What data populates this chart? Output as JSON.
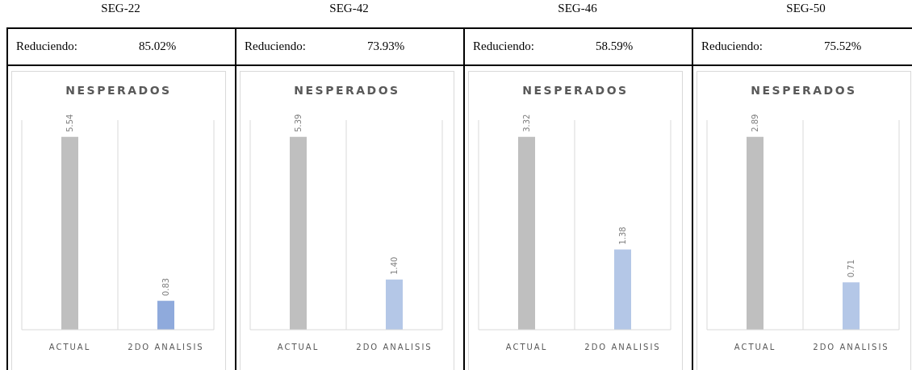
{
  "chart_data": [
    {
      "type": "bar",
      "title": "SEG-22",
      "subtitle": "NESPERADOS",
      "annotations": [
        "Reduciendo:",
        "85.02%"
      ],
      "categories": [
        "ACTUAL",
        "2DO ANALISIS"
      ],
      "values": [
        5.54,
        0.83
      ],
      "value_labels": [
        "5.54",
        "0.83"
      ],
      "colors": [
        "#bfbfbf",
        "#8faadc"
      ],
      "grid": "x",
      "tick_labels": "x"
    },
    {
      "type": "bar",
      "title": "SEG-42",
      "subtitle": "NESPERADOS",
      "annotations": [
        "Reduciendo:",
        "73.93%"
      ],
      "categories": [
        "ACTUAL",
        "2DO ANALISIS"
      ],
      "values": [
        5.39,
        1.4
      ],
      "value_labels": [
        "5.39",
        "1.40"
      ],
      "colors": [
        "#bfbfbf",
        "#b4c7e7"
      ],
      "grid": "x",
      "tick_labels": "x"
    },
    {
      "type": "bar",
      "title": "SEG-46",
      "subtitle": "NESPERADOS",
      "annotations": [
        "Reduciendo:",
        "58.59%"
      ],
      "categories": [
        "ACTUAL",
        "2DO ANALISIS"
      ],
      "values": [
        3.32,
        1.38
      ],
      "value_labels": [
        "3.32",
        "1.38"
      ],
      "colors": [
        "#bfbfbf",
        "#b4c7e7"
      ],
      "grid": "x",
      "tick_labels": "x"
    },
    {
      "type": "bar",
      "title": "SEG-50",
      "subtitle": "NESPERADOS",
      "annotations": [
        "Reduciendo:",
        "75.52%"
      ],
      "categories": [
        "ACTUAL",
        "2DO ANALISIS"
      ],
      "values": [
        2.89,
        0.71
      ],
      "value_labels": [
        "2.89",
        "0.71"
      ],
      "colors": [
        "#bfbfbf",
        "#b4c7e7"
      ],
      "grid": "x",
      "tick_labels": "x"
    }
  ]
}
